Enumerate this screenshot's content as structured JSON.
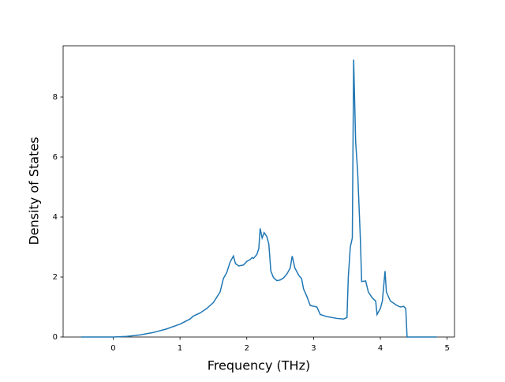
{
  "chart_data": {
    "type": "line",
    "x_label": "Frequency (THz)",
    "y_label": "Density of States",
    "x": [
      -0.48,
      0,
      0.2,
      0.4,
      0.6,
      0.8,
      1.0,
      1.15,
      1.2,
      1.3,
      1.4,
      1.5,
      1.6,
      1.65,
      1.7,
      1.75,
      1.8,
      1.83,
      1.88,
      1.95,
      2.0,
      2.05,
      2.08,
      2.1,
      2.15,
      2.18,
      2.2,
      2.23,
      2.26,
      2.3,
      2.33,
      2.36,
      2.4,
      2.45,
      2.5,
      2.55,
      2.6,
      2.65,
      2.68,
      2.72,
      2.78,
      2.82,
      2.85,
      2.9,
      2.95,
      3.05,
      3.1,
      3.2,
      3.35,
      3.45,
      3.5,
      3.52,
      3.55,
      3.58,
      3.6,
      3.63,
      3.66,
      3.7,
      3.72,
      3.78,
      3.82,
      3.88,
      3.93,
      3.95,
      4.0,
      4.03,
      4.07,
      4.09,
      4.15,
      4.25,
      4.3,
      4.35,
      4.38,
      4.4,
      4.84
    ],
    "series": [
      {
        "color": "#1f77b4",
        "values": [
          0,
          0,
          0.02,
          0.07,
          0.15,
          0.27,
          0.43,
          0.6,
          0.7,
          0.8,
          0.95,
          1.15,
          1.5,
          1.95,
          2.15,
          2.5,
          2.7,
          2.45,
          2.37,
          2.4,
          2.52,
          2.58,
          2.65,
          2.62,
          2.75,
          2.95,
          3.62,
          3.3,
          3.48,
          3.35,
          3.1,
          2.2,
          1.98,
          1.88,
          1.9,
          1.97,
          2.1,
          2.3,
          2.7,
          2.3,
          2.05,
          1.95,
          1.6,
          1.35,
          1.05,
          1.0,
          0.75,
          0.68,
          0.62,
          0.6,
          0.65,
          2.0,
          3.0,
          3.3,
          9.25,
          6.5,
          5.5,
          3.3,
          1.85,
          1.87,
          1.5,
          1.3,
          1.2,
          0.75,
          0.95,
          1.2,
          2.2,
          1.5,
          1.2,
          1.05,
          1.0,
          1.02,
          0.95,
          0,
          0
        ]
      }
    ],
    "xlim": [
      -0.75,
      5.11
    ],
    "xticks": [
      0,
      1,
      2,
      3,
      4,
      5
    ],
    "ylim": [
      0,
      9.71
    ],
    "yticks": [
      0,
      2,
      4,
      6,
      8
    ]
  }
}
